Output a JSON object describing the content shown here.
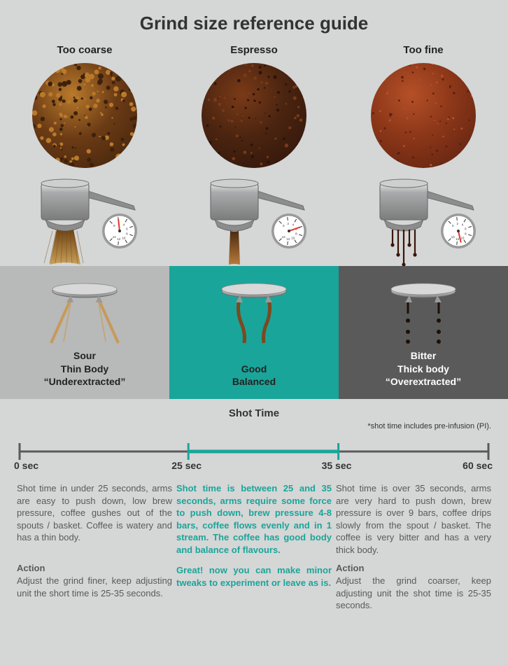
{
  "title": "Grind size reference guide",
  "columns": [
    {
      "label": "Too coarse"
    },
    {
      "label": "Espresso"
    },
    {
      "label": "Too fine"
    }
  ],
  "grind_circles": [
    {
      "base": "#6b3b15",
      "dark": "#3e210b",
      "light": "#b97a2b",
      "texture_scale": 1.0
    },
    {
      "base": "#4a2410",
      "dark": "#2c130a",
      "light": "#7a3a18",
      "texture_scale": 0.5
    },
    {
      "base": "#8a3618",
      "dark": "#5a2010",
      "light": "#b55028",
      "texture_scale": 0.25
    }
  ],
  "portafilter": {
    "body_fill": "#a9aaab",
    "body_stroke": "#6f6f6f",
    "highlight": "#e6e6e6",
    "handle_fill": "#8d8d8d",
    "gauge_face": "#ffffff",
    "gauge_ring": "#9c9c9c",
    "gauge_needle": "#e13b2a",
    "gauge_ticks": "#333333",
    "gauge_numbers": [
      "0",
      "2",
      "4",
      "6",
      "8",
      "10",
      "12",
      "14"
    ]
  },
  "pours": [
    {
      "type": "wide_stream",
      "color_top": "#6e4414",
      "color_bot": "#caa05a"
    },
    {
      "type": "thin_stream",
      "color_top": "#4a2b10",
      "color_bot": "#b87a3a"
    },
    {
      "type": "drips",
      "color": "#3a1508"
    }
  ],
  "result_panels": [
    {
      "bg": "#b8b9b9",
      "text_color": "#222222",
      "lines": [
        "Sour",
        "Thin Body",
        "“Underextracted”"
      ],
      "flow": "spray",
      "flow_color": "#c79a5a"
    },
    {
      "bg": "#1aa59a",
      "text_color": "#222222",
      "lines": [
        "Good",
        "Balanced"
      ],
      "flow": "double_stream",
      "flow_color": "#7a4a20"
    },
    {
      "bg": "#5a5a5a",
      "text_color": "#ffffff",
      "lines": [
        "Bitter",
        "Thick body",
        "“Overextracted”"
      ],
      "flow": "drip",
      "flow_color": "#1f0f06"
    }
  ],
  "shot_time": {
    "title": "Shot Time",
    "note": "*shot time includes pre-infusion (PI).",
    "axis_color": "#5a5a5a",
    "mid_color": "#1aa59a",
    "ticks": {
      "t0": "0 sec",
      "t25": "25 sec",
      "t35": "35 sec",
      "t60": "60 sec"
    },
    "t25_frac": 0.36,
    "t35_frac": 0.68
  },
  "descriptions": [
    {
      "color": "#5a5a5a",
      "text": "Shot time in under 25 seconds, arms are easy to push down, low brew pressure, coffee gushes out of the spouts / basket.  Coffee is watery and has a thin body."
    },
    {
      "color": "#1aa59a",
      "text": "Shot time is between 25 and 35 seconds, arms require some force to push down, brew pressure 4-8 bars, coffee flows evenly and in 1 stream.  The coffee has good body and balance of flavours."
    },
    {
      "color": "#5a5a5a",
      "text": "Shot time is over 35 seconds, arms are very hard to push down, brew pressure is over 9 bars, coffee drips slowly from the spout / basket.  The coffee is very bitter and has a very thick body."
    }
  ],
  "actions": [
    {
      "head": "Action",
      "head_color": "#5a5a5a",
      "body_color": "#5a5a5a",
      "body": "Adjust the grind finer, keep adjusting unit the short time is 25-35 seconds."
    },
    {
      "head": "",
      "head_color": "#1aa59a",
      "body_color": "#1aa59a",
      "body": "Great!  now you can make minor tweaks to experiment or leave as is."
    },
    {
      "head": "Action",
      "head_color": "#5a5a5a",
      "body_color": "#5a5a5a",
      "body": "Adjust the grind coarser, keep adjusting unit the shot time is 25-35 seconds."
    }
  ]
}
